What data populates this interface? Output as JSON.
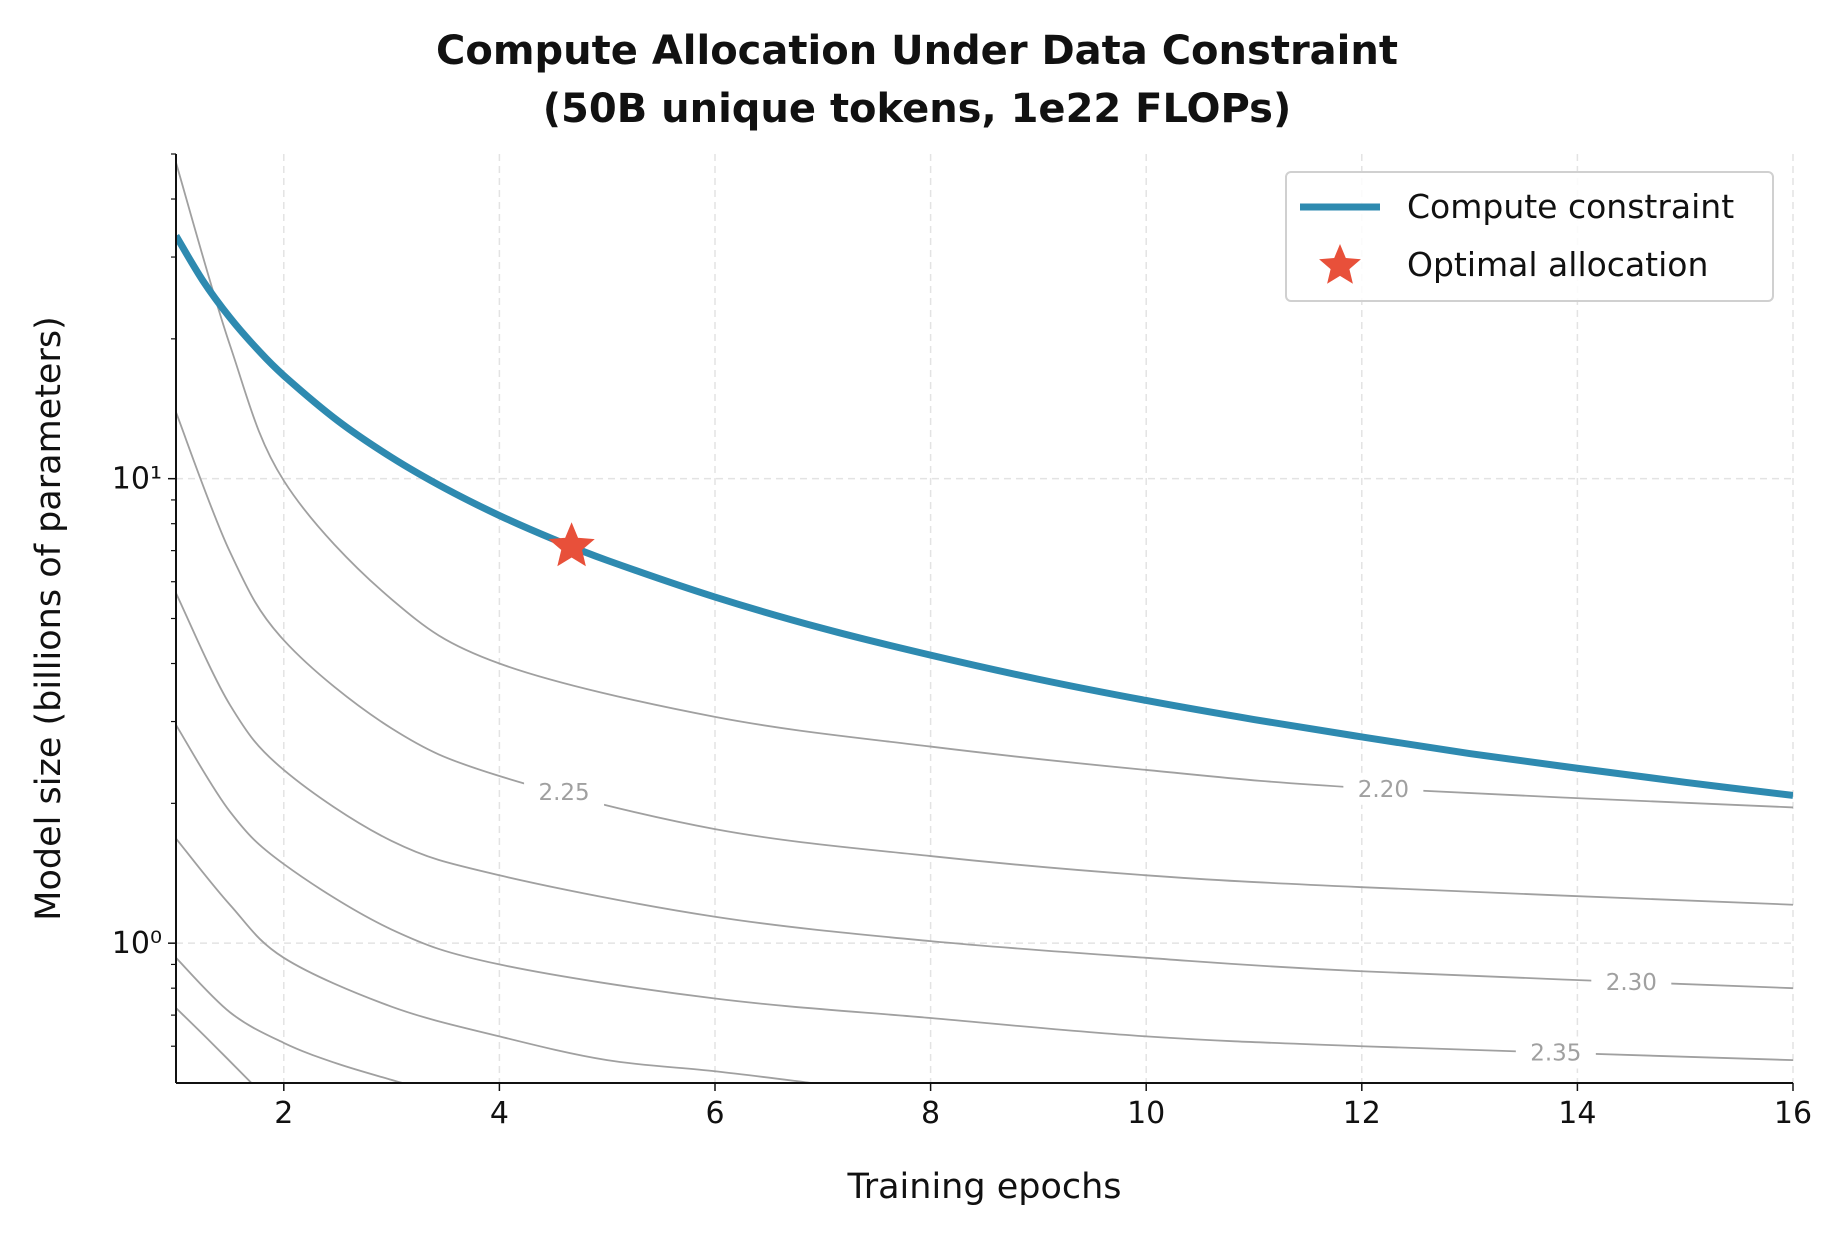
{
  "chart_data": {
    "type": "line",
    "title": "Compute Allocation Under Data Constraint\n(50B unique tokens, 1e22 FLOPs)",
    "xlabel": "Training epochs",
    "ylabel": "Model size (billions of parameters)",
    "xlim": [
      1,
      16
    ],
    "ylim": [
      0.5,
      50
    ],
    "log_y": true,
    "grid": true,
    "legend": "upper right",
    "xticks": [
      2,
      4,
      6,
      8,
      10,
      12,
      14,
      16
    ],
    "yticks": [
      {
        "value": 1,
        "label": "10⁰"
      },
      {
        "value": 10,
        "label": "10¹"
      }
    ],
    "yticks_minor": [
      0.6,
      0.7,
      0.8,
      0.9,
      2,
      3,
      4,
      5,
      6,
      7,
      8,
      9,
      20,
      30,
      40,
      50
    ],
    "series": [
      {
        "name": "Compute constraint",
        "color": "#2e8ab0",
        "x": [
          1,
          1.25,
          1.5,
          1.75,
          2,
          2.5,
          3,
          3.5,
          4,
          4.5,
          5,
          6,
          7,
          8,
          9,
          10,
          11,
          12,
          13,
          14,
          15,
          16
        ],
        "values": [
          33.33,
          26.67,
          22.22,
          19.05,
          16.67,
          13.33,
          11.11,
          9.52,
          8.33,
          7.41,
          6.67,
          5.56,
          4.76,
          4.17,
          3.7,
          3.33,
          3.03,
          2.78,
          2.56,
          2.38,
          2.22,
          2.08
        ]
      }
    ],
    "point": {
      "name": "Optimal allocation",
      "color": "#e8503a",
      "x": 4.67,
      "y": 7.14
    },
    "contour_color": "#a0a0a0",
    "contours": [
      {
        "label": "2.20",
        "x": [
          1,
          1.5,
          2,
          3,
          4,
          6,
          8,
          10,
          12,
          16
        ],
        "values": [
          47.9,
          19.4,
          9.9,
          5.5,
          4.0,
          3.07,
          2.65,
          2.36,
          2.16,
          1.96
        ]
      },
      {
        "label": "2.25",
        "x": [
          1,
          1.5,
          2,
          3,
          4,
          6,
          8,
          10,
          12,
          16
        ],
        "values": [
          13.9,
          6.96,
          4.49,
          2.9,
          2.29,
          1.76,
          1.54,
          1.4,
          1.32,
          1.21
        ]
      },
      {
        "label": "2.30",
        "x": [
          1,
          1.5,
          2,
          3,
          4,
          6,
          8,
          10,
          12,
          16
        ],
        "values": [
          5.67,
          3.26,
          2.36,
          1.66,
          1.4,
          1.14,
          1.01,
          0.93,
          0.87,
          0.8
        ]
      },
      {
        "label": "2.35",
        "x": [
          1,
          1.5,
          2,
          3,
          4,
          6,
          8,
          10,
          12,
          16
        ],
        "values": [
          2.95,
          1.92,
          1.48,
          1.07,
          0.9,
          0.76,
          0.69,
          0.63,
          0.6,
          0.56
        ]
      },
      {
        "x": [
          1,
          1.5,
          2,
          3,
          4,
          5,
          6,
          6.9
        ],
        "values": [
          1.68,
          1.21,
          0.93,
          0.73,
          0.63,
          0.56,
          0.53,
          0.5
        ]
      },
      {
        "x": [
          1,
          1.5,
          2,
          2.5,
          3.1
        ],
        "values": [
          0.93,
          0.71,
          0.61,
          0.55,
          0.5
        ]
      },
      {
        "x": [
          1,
          1.3,
          1.7
        ],
        "values": [
          0.725,
          0.62,
          0.5
        ]
      }
    ]
  }
}
